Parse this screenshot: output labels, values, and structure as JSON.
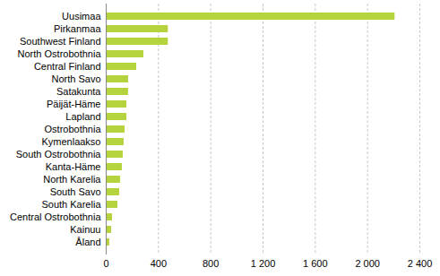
{
  "chart_data": {
    "type": "bar",
    "orientation": "horizontal",
    "categories": [
      "Uusimaa",
      "Pirkanmaa",
      "Southwest Finland",
      "North Ostrobothnia",
      "Central Finland",
      "North Savo",
      "Satakunta",
      "Päijät-Häme",
      "Lapland",
      "Ostrobothnia",
      "Kymenlaakso",
      "South Ostrobothnia",
      "Kanta-Häme",
      "North Karelia",
      "South Savo",
      "South Karelia",
      "Central Ostrobothnia",
      "Kainuu",
      "Åland"
    ],
    "values": [
      2210,
      475,
      475,
      288,
      233,
      171,
      171,
      158,
      158,
      144,
      137,
      130,
      123,
      110,
      103,
      89,
      48,
      41,
      27
    ],
    "color": "#b4d33c",
    "xlim": [
      0,
      2400
    ],
    "xticks": [
      0,
      400,
      800,
      {
        "value": 1200,
        "label": "1 200"
      },
      {
        "value": 1600,
        "label": "1 600"
      },
      {
        "value": 2000,
        "label": "2 000"
      },
      {
        "value": 2400,
        "label": "2 400"
      }
    ],
    "grid": true
  }
}
